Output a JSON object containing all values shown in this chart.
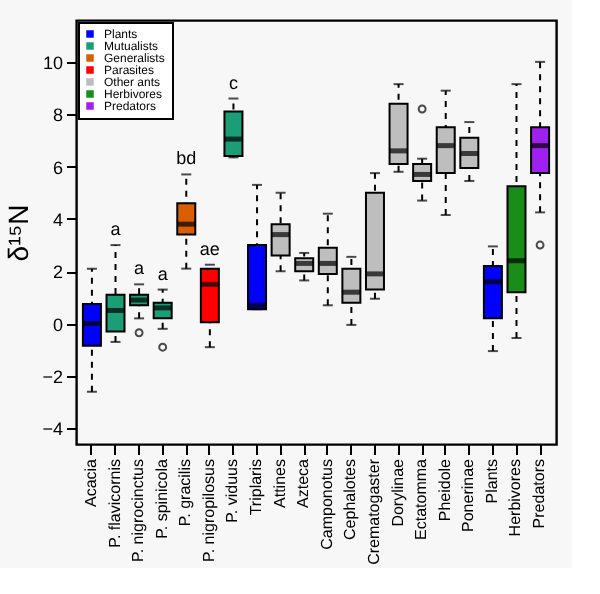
{
  "chart_data": {
    "type": "box",
    "ylabel": "δ¹⁵N",
    "categories": [
      "Acacia",
      "P. flavicornis",
      "P. nigrocinctus",
      "P. spinicola",
      "P. gracilis",
      "P. nigropilosus",
      "P. viduus",
      "Triplaris",
      "Attines",
      "Azteca",
      "Camponotus",
      "Cephalotes",
      "Crematogaster",
      "Dorylinae",
      "Ectatomma",
      "Pheidole",
      "Ponerinae",
      "Plants",
      "Herbivores",
      "Predators"
    ],
    "series": [
      {
        "name": "Plants",
        "color": "#0000ff",
        "x": [
          "Acacia",
          "Triplaris",
          "Plants"
        ],
        "boxes": [
          {
            "low": -2.6,
            "q1": -0.85,
            "median": 0,
            "q3": 0.75,
            "high": 2.1
          },
          {
            "low": 0.55,
            "q1": 0.55,
            "median": 0.7,
            "q3": 3.0,
            "high": 5.3
          },
          {
            "low": -1.05,
            "q1": 0.2,
            "median": 1.6,
            "q3": 2.2,
            "high": 2.95
          }
        ]
      },
      {
        "name": "Mutualists",
        "color": "#1b9e77",
        "x": [
          "P. flavicornis",
          "P. nigrocinctus",
          "P. spinicola",
          "P. viduus"
        ],
        "boxes": [
          {
            "low": -0.7,
            "q1": -0.3,
            "median": 0.5,
            "q3": 1.1,
            "high": 3.0
          },
          {
            "low": 0.2,
            "q1": 0.7,
            "median": 0.9,
            "q3": 1.1,
            "high": 1.5,
            "outliers": [
              -0.35
            ]
          },
          {
            "low": -0.2,
            "q1": 0.2,
            "median": 0.6,
            "q3": 0.8,
            "high": 1.3,
            "outliers": [
              -0.9
            ]
          },
          {
            "low": 6.35,
            "q1": 6.4,
            "median": 7.05,
            "q3": 8.1,
            "high": 8.6
          }
        ]
      },
      {
        "name": "Generalists",
        "color": "#d95f02",
        "x": [
          "P. gracilis"
        ],
        "boxes": [
          {
            "low": 2.1,
            "q1": 3.4,
            "median": 3.8,
            "q3": 4.6,
            "high": 5.7
          }
        ]
      },
      {
        "name": "Parasites",
        "color": "#ff0000",
        "x": [
          "P. nigropilosus"
        ],
        "boxes": [
          {
            "low": -0.9,
            "q1": 0.05,
            "median": 1.5,
            "q3": 2.1,
            "high": 2.25
          }
        ]
      },
      {
        "name": "Other ants",
        "color": "#bebebe",
        "x": [
          "Attines",
          "Azteca",
          "Camponotus",
          "Cephalotes",
          "Crematogaster",
          "Dorylinae",
          "Ectatomma",
          "Pheidole",
          "Ponerinae"
        ],
        "boxes": [
          {
            "low": 2.0,
            "q1": 2.6,
            "median": 3.4,
            "q3": 3.8,
            "high": 5.0
          },
          {
            "low": 1.65,
            "q1": 2.0,
            "median": 2.3,
            "q3": 2.5,
            "high": 2.7
          },
          {
            "low": 0.7,
            "q1": 1.9,
            "median": 2.3,
            "q3": 2.9,
            "high": 4.2
          },
          {
            "low": -0.05,
            "q1": 0.8,
            "median": 1.2,
            "q3": 2.1,
            "high": 2.55
          },
          {
            "low": 0.95,
            "q1": 1.3,
            "median": 1.9,
            "q3": 5.0,
            "high": 5.75
          },
          {
            "low": 5.8,
            "q1": 6.1,
            "median": 6.6,
            "q3": 8.4,
            "high": 9.15
          },
          {
            "low": 4.7,
            "q1": 5.45,
            "median": 5.7,
            "q3": 6.1,
            "high": 6.3,
            "outliers": [
              8.2
            ]
          },
          {
            "low": 4.15,
            "q1": 5.75,
            "median": 6.8,
            "q3": 7.5,
            "high": 8.9
          },
          {
            "low": 5.45,
            "q1": 5.95,
            "median": 6.5,
            "q3": 7.1,
            "high": 7.7
          }
        ]
      },
      {
        "name": "Herbivores",
        "color": "#1a8c1a",
        "x": [
          "Herbivores"
        ],
        "boxes": [
          {
            "low": -0.55,
            "q1": 1.2,
            "median": 2.4,
            "q3": 5.25,
            "high": 9.15
          }
        ]
      },
      {
        "name": "Predators",
        "color": "#a020f0",
        "x": [
          "Predators"
        ],
        "boxes": [
          {
            "low": 4.25,
            "q1": 5.75,
            "median": 6.8,
            "q3": 7.5,
            "high": 10.0,
            "outliers": [
              3.0
            ]
          }
        ]
      }
    ],
    "annotations": [
      {
        "text": "a",
        "x": "P. flavicornis",
        "y": 3.0
      },
      {
        "text": "a",
        "x": "P. nigrocinctus",
        "y": 1.5
      },
      {
        "text": "a",
        "x": "P. spinicola",
        "y": 1.3
      },
      {
        "text": "bd",
        "x": "P. gracilis",
        "y": 5.7
      },
      {
        "text": "ae",
        "x": "P. nigropilosus",
        "y": 2.25
      },
      {
        "text": "c",
        "x": "P. viduus",
        "y": 8.6
      }
    ],
    "ylim": [
      -4.6,
      11.6
    ],
    "yticks": [
      -4,
      -2,
      0,
      2,
      4,
      6,
      8,
      10
    ],
    "grid": false,
    "legend": "top left"
  }
}
